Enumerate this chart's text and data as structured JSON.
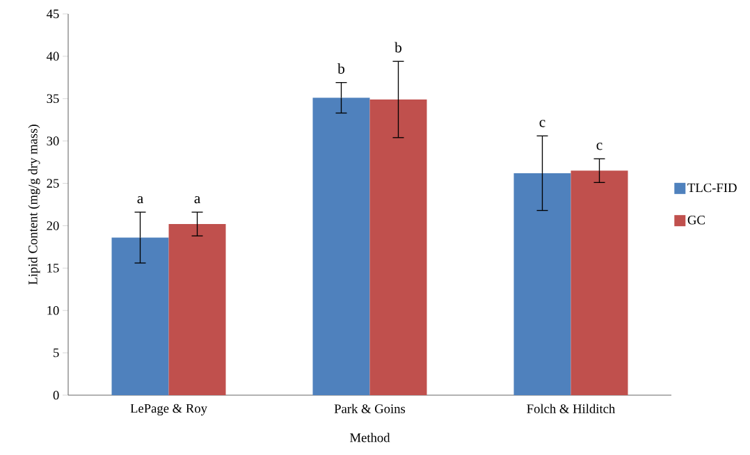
{
  "chart_data": {
    "type": "bar",
    "xlabel": "Method",
    "ylabel": "Lipid Content (mg/g dry mass)",
    "categories": [
      "LePage & Roy",
      "Park & Goins",
      "Folch & Hilditch"
    ],
    "series": [
      {
        "name": "TLC-FID",
        "color": "#4f81bd",
        "values": [
          18.6,
          35.1,
          26.2
        ],
        "errors": [
          3.0,
          1.8,
          4.4
        ]
      },
      {
        "name": "GC",
        "color": "#c0504d",
        "values": [
          20.2,
          34.9,
          26.5
        ],
        "errors": [
          1.4,
          4.5,
          1.4
        ]
      }
    ],
    "ylim": [
      0,
      45
    ],
    "yticks": [
      0,
      5,
      10,
      15,
      20,
      25,
      30,
      35,
      40,
      45
    ],
    "grid": false,
    "legend": "right",
    "annotations": [
      "a",
      "a",
      "b",
      "b",
      "c",
      "c"
    ]
  }
}
